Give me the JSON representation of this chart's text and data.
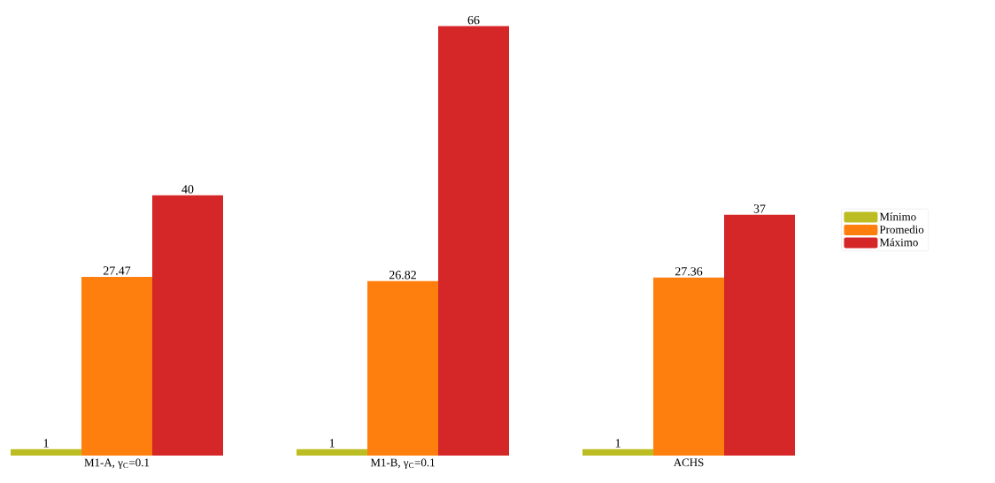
{
  "chart_data": {
    "type": "bar",
    "categories": [
      "M1-A, γ$_{C}$=0.1",
      "M1-B, γ$_{C}$=0.1",
      "ACHS"
    ],
    "series": [
      {
        "name": "Mínimo",
        "color": "#bcbd22",
        "values": [
          1,
          1,
          1
        ]
      },
      {
        "name": "Promedio",
        "color": "#ff7f0e",
        "values": [
          27.47,
          26.82,
          27.36
        ]
      },
      {
        "name": "Máximo",
        "color": "#d62728",
        "values": [
          40,
          66,
          37
        ]
      }
    ],
    "data_labels": true,
    "legend": "right",
    "grid": false
  }
}
